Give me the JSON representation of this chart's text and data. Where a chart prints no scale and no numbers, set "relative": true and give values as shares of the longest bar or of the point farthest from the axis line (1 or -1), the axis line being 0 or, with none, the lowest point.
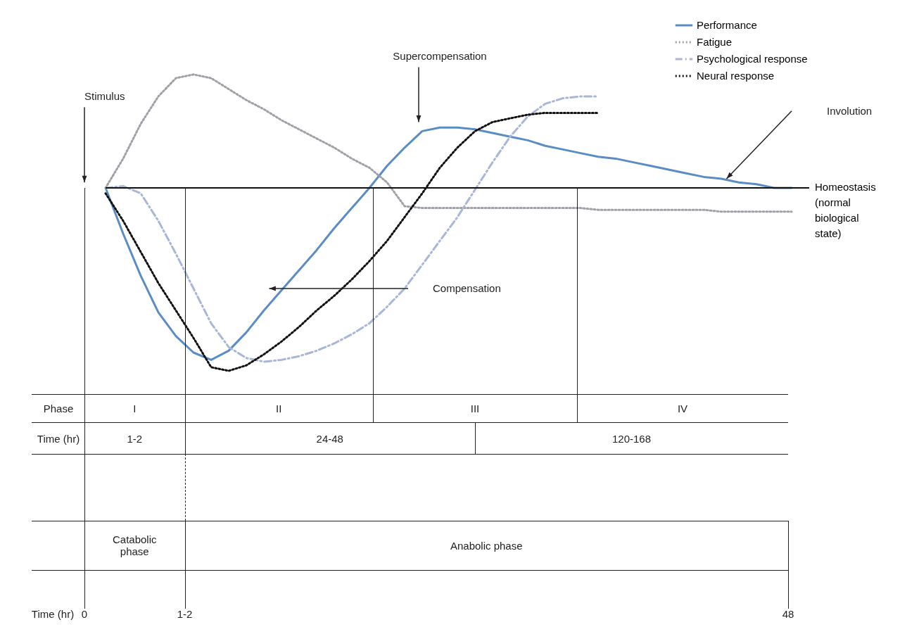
{
  "chart_data": {
    "type": "line",
    "relative": true,
    "legend": "top right",
    "categories": [
      null,
      null,
      null,
      null,
      null,
      null,
      null,
      null,
      null,
      null,
      null,
      null,
      null,
      null,
      null,
      null,
      null,
      null,
      null,
      null,
      null,
      null,
      null,
      null,
      null,
      null,
      null,
      null,
      null,
      null,
      null,
      null,
      null,
      null,
      null,
      null,
      null,
      null,
      null,
      null,
      null
    ],
    "series": [
      {
        "name": "Performance",
        "color": "#5b8cc4",
        "line_style": "solid",
        "values": [
          0,
          -0.25,
          -0.48,
          -0.68,
          -0.81,
          -0.9,
          -0.94,
          -0.89,
          -0.79,
          -0.67,
          -0.56,
          -0.45,
          -0.34,
          -0.22,
          -0.11,
          0,
          0.12,
          0.22,
          0.31,
          0.33,
          0.33,
          0.32,
          0.3,
          0.28,
          0.26,
          0.23,
          0.21,
          0.19,
          0.17,
          0.16,
          0.14,
          0.12,
          0.1,
          0.08,
          0.06,
          0.05,
          0.03,
          0.02,
          0,
          0,
          null
        ]
      },
      {
        "name": "Fatigue",
        "color": "#a0a0a8",
        "line_style": "dotted",
        "values": [
          0,
          0.16,
          0.35,
          0.5,
          0.6,
          0.62,
          0.6,
          0.54,
          0.48,
          0.43,
          0.37,
          0.32,
          0.27,
          0.22,
          0.16,
          0.11,
          0.03,
          -0.1,
          -0.11,
          -0.11,
          -0.11,
          -0.11,
          -0.11,
          -0.11,
          -0.11,
          -0.11,
          -0.11,
          -0.11,
          -0.12,
          -0.12,
          -0.12,
          -0.12,
          -0.12,
          -0.12,
          -0.12,
          -0.13,
          -0.13,
          -0.13,
          -0.13,
          -0.13,
          null
        ]
      },
      {
        "name": "Psychological response",
        "color": "#a9b6d8",
        "line_style": "dashed",
        "values": [
          0,
          0.01,
          -0.03,
          -0.18,
          -0.36,
          -0.55,
          -0.74,
          -0.87,
          -0.93,
          -0.95,
          -0.94,
          -0.92,
          -0.89,
          -0.85,
          -0.8,
          -0.74,
          -0.65,
          -0.55,
          -0.42,
          -0.29,
          -0.16,
          -0.01,
          0.14,
          0.28,
          0.39,
          0.46,
          0.49,
          0.5,
          0.5,
          null,
          null,
          null,
          null,
          null,
          null,
          null,
          null,
          null,
          null,
          null,
          null
        ]
      },
      {
        "name": "Neural response",
        "color": "#111111",
        "line_style": "dotted",
        "values": [
          -0.03,
          -0.18,
          -0.35,
          -0.52,
          -0.67,
          -0.82,
          -0.98,
          -1,
          -0.97,
          -0.91,
          -0.84,
          -0.76,
          -0.67,
          -0.59,
          -0.5,
          -0.4,
          -0.29,
          -0.16,
          -0.03,
          0.11,
          0.22,
          0.31,
          0.36,
          0.38,
          0.4,
          0.41,
          0.41,
          0.41,
          0.41,
          null,
          null,
          null,
          null,
          null,
          null,
          null,
          null,
          null,
          null,
          null,
          null
        ]
      }
    ],
    "ref_lines": [
      {
        "axis": "y",
        "value": 0,
        "label": "Homeostasis (normal biological state)",
        "color": "#111111"
      }
    ],
    "annotations": [
      "Stimulus",
      "Supercompensation",
      "Compensation",
      "Involution",
      "Phase",
      "I",
      "II",
      "III",
      "IV",
      "Time (hr)",
      "1-2",
      "24-48",
      "120-168",
      "Catabolic phase",
      "Anabolic phase",
      "Time (hr)",
      "0",
      "1-2",
      "48"
    ]
  }
}
